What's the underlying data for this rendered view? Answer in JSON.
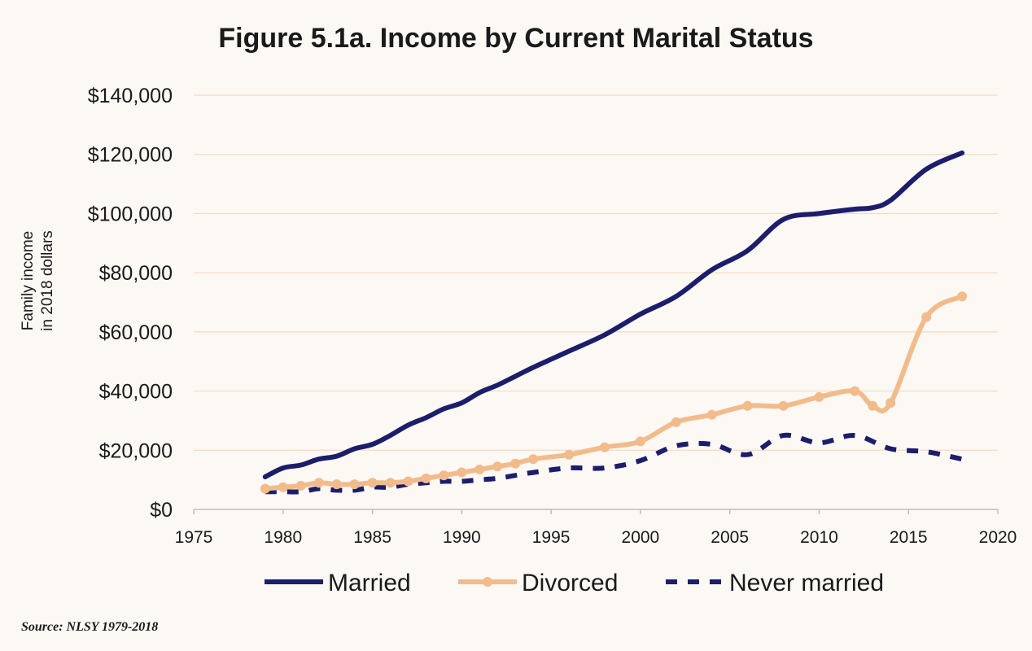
{
  "chart_data": {
    "type": "line",
    "title": "Figure 5.1a. Income by Current Marital Status",
    "ylabel_lines": [
      "Family income",
      "in 2018 dollars"
    ],
    "xlabel": "",
    "xlim": [
      1975,
      2020
    ],
    "ylim": [
      0,
      140000
    ],
    "x_ticks": [
      1975,
      1980,
      1985,
      1990,
      1995,
      2000,
      2005,
      2010,
      2015,
      2020
    ],
    "y_ticks": [
      0,
      20000,
      40000,
      60000,
      80000,
      100000,
      120000,
      140000
    ],
    "y_tick_labels": [
      "$0",
      "$20,000",
      "$40,000",
      "$60,000",
      "$80,000",
      "$100,000",
      "$120,000",
      "$140,000"
    ],
    "grid": "horizontal",
    "legend_position": "bottom",
    "series": [
      {
        "name": "Married",
        "color": "#1c1d6b",
        "style": "solid",
        "markers": false,
        "points": [
          [
            1979,
            11000
          ],
          [
            1980,
            14000
          ],
          [
            1981,
            15000
          ],
          [
            1982,
            17000
          ],
          [
            1983,
            18000
          ],
          [
            1984,
            20500
          ],
          [
            1985,
            22000
          ],
          [
            1986,
            25000
          ],
          [
            1987,
            28500
          ],
          [
            1988,
            31000
          ],
          [
            1989,
            34000
          ],
          [
            1990,
            36000
          ],
          [
            1991,
            39500
          ],
          [
            1992,
            42000
          ],
          [
            1993,
            45000
          ],
          [
            1994,
            48000
          ],
          [
            1996,
            53500
          ],
          [
            1998,
            59000
          ],
          [
            2000,
            66000
          ],
          [
            2002,
            72000
          ],
          [
            2004,
            81000
          ],
          [
            2006,
            87500
          ],
          [
            2008,
            98000
          ],
          [
            2010,
            100000
          ],
          [
            2012,
            101500
          ],
          [
            2013,
            102000
          ],
          [
            2014,
            104500
          ],
          [
            2016,
            115000
          ],
          [
            2018,
            120500
          ]
        ]
      },
      {
        "name": "Divorced",
        "color": "#f2bb8c",
        "style": "solid",
        "markers": true,
        "points": [
          [
            1979,
            7000
          ],
          [
            1980,
            7500
          ],
          [
            1981,
            8000
          ],
          [
            1982,
            9000
          ],
          [
            1983,
            8500
          ],
          [
            1984,
            8500
          ],
          [
            1985,
            9000
          ],
          [
            1986,
            9000
          ],
          [
            1987,
            9500
          ],
          [
            1988,
            10500
          ],
          [
            1989,
            11500
          ],
          [
            1990,
            12500
          ],
          [
            1991,
            13500
          ],
          [
            1992,
            14500
          ],
          [
            1993,
            15500
          ],
          [
            1994,
            17000
          ],
          [
            1996,
            18500
          ],
          [
            1998,
            21000
          ],
          [
            2000,
            23000
          ],
          [
            2002,
            29500
          ],
          [
            2004,
            32000
          ],
          [
            2006,
            35000
          ],
          [
            2008,
            35000
          ],
          [
            2010,
            38000
          ],
          [
            2012,
            40000
          ],
          [
            2013,
            35000
          ],
          [
            2014,
            36000
          ],
          [
            2016,
            65000
          ],
          [
            2018,
            72000
          ]
        ]
      },
      {
        "name": "Never married",
        "color": "#1c1d6b",
        "style": "dashed",
        "markers": false,
        "points": [
          [
            1979,
            6000
          ],
          [
            1980,
            6000
          ],
          [
            1981,
            6000
          ],
          [
            1982,
            7000
          ],
          [
            1983,
            6500
          ],
          [
            1984,
            6500
          ],
          [
            1985,
            7500
          ],
          [
            1986,
            7500
          ],
          [
            1987,
            8500
          ],
          [
            1988,
            9000
          ],
          [
            1989,
            9500
          ],
          [
            1990,
            9500
          ],
          [
            1991,
            10000
          ],
          [
            1992,
            10500
          ],
          [
            1993,
            11500
          ],
          [
            1994,
            12500
          ],
          [
            1996,
            14000
          ],
          [
            1998,
            14000
          ],
          [
            2000,
            16500
          ],
          [
            2002,
            21500
          ],
          [
            2004,
            22000
          ],
          [
            2006,
            18500
          ],
          [
            2008,
            25000
          ],
          [
            2010,
            22500
          ],
          [
            2012,
            25000
          ],
          [
            2014,
            20500
          ],
          [
            2016,
            19500
          ],
          [
            2018,
            17000
          ]
        ]
      }
    ],
    "source": "Source: NLSY 1979-2018"
  }
}
